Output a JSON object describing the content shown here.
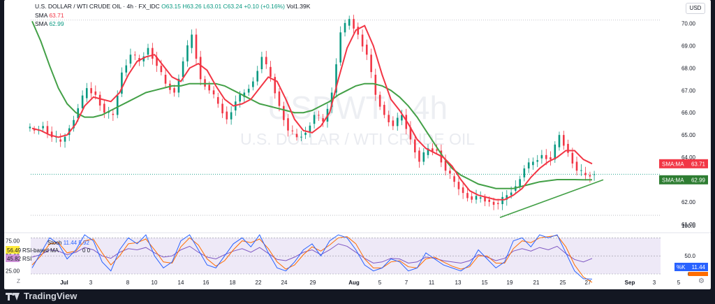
{
  "header": {
    "symbol": "U.S. DOLLAR / WTI CRUDE OIL",
    "timeframe": "4h",
    "exchange": "FX_IDC",
    "open": "O63.15",
    "high": "H63.26",
    "low": "L63.01",
    "close": "C63.24",
    "change": "+0.10 (+0.16%)",
    "volume": "Vol1.39K",
    "sma1_label": "SMA",
    "sma1_value": "63.71",
    "sma2_label": "SMA",
    "sma2_value": "62.99",
    "currency": "USD"
  },
  "watermark": {
    "ticker": "USDWTI, 4h",
    "name": "U.S. DOLLAR / WTI CRUDE OIL"
  },
  "price_tags": {
    "sma_fast_label": "SMA:MA",
    "sma_fast_value": "63.71",
    "sma_slow_label": "SMA:MA",
    "sma_slow_value": "62.99"
  },
  "oscillator": {
    "stoch_label": "Stoch",
    "stoch_values": "11.44  5.92",
    "rsi_based_label": "RSI-based MA",
    "rsi_based_value": "56.49",
    "rsi_label": "RSI",
    "rsi_value": "45.82",
    "extra": "0  0",
    "k_label": "%K",
    "k_value": "11.44",
    "d_value": "5.92"
  },
  "footer": {
    "brand": "TradingView"
  },
  "bottom_left": "Z",
  "colors": {
    "up": "#089981",
    "down": "#f23645",
    "sma_fast": "#f23645",
    "sma_slow": "#43a047",
    "stoch_k": "#2962ff",
    "stoch_d": "#ff6d00",
    "rsi": "#7e57c2",
    "band": "#7e57c2"
  },
  "chart_data": [
    {
      "type": "candlestick",
      "title": "U.S. DOLLAR / WTI CRUDE OIL, 4h",
      "x_tick_labels": [
        "Jul",
        "3",
        "8",
        "10",
        "14",
        "16",
        "18",
        "22",
        "24",
        "29",
        "Aug",
        "5",
        "7",
        "11",
        "13",
        "15",
        "19",
        "21",
        "25",
        "27",
        "Sep",
        "3",
        "5"
      ],
      "y_tick_labels": [
        "70.00",
        "69.00",
        "68.00",
        "67.00",
        "66.00",
        "65.00",
        "64.00",
        "62.00",
        "61.00"
      ],
      "ylim": [
        60.9,
        70.55
      ],
      "last_close": 63.24,
      "sma_fast_last": 63.71,
      "sma_slow_last": 62.99,
      "close_path": [
        65.2,
        65.4,
        64.9,
        64.7,
        65.3,
        66.2,
        67.1,
        66.8,
        66.0,
        65.9,
        67.8,
        68.6,
        68.3,
        68.9,
        68.1,
        67.3,
        66.9,
        68.3,
        69.5,
        67.5,
        67.0,
        66.4,
        65.7,
        66.5,
        66.9,
        67.4,
        68.5,
        67.6,
        66.3,
        65.2,
        64.9,
        65.1,
        65.9,
        65.6,
        66.9,
        69.6,
        70.2,
        69.5,
        68.6,
        66.8,
        65.9,
        65.4,
        65.9,
        64.8,
        63.8,
        64.4,
        64.3,
        63.4,
        62.9,
        62.4,
        62.1,
        62.2,
        62.0,
        61.9,
        62.3,
        62.7,
        63.5,
        63.8,
        64.1,
        63.9,
        65.0,
        64.2,
        63.4,
        63.2,
        63.24
      ],
      "sma_fast": [
        65.3,
        65.2,
        65.0,
        64.9,
        65.0,
        65.5,
        66.3,
        66.7,
        66.6,
        66.5,
        66.9,
        67.7,
        68.3,
        68.5,
        68.6,
        68.1,
        67.6,
        67.4,
        68.0,
        68.2,
        67.9,
        67.2,
        66.6,
        66.3,
        66.4,
        66.6,
        67.1,
        67.6,
        67.4,
        66.6,
        65.7,
        65.2,
        65.1,
        65.4,
        66.0,
        67.5,
        68.9,
        69.7,
        69.9,
        69.0,
        67.7,
        66.6,
        66.1,
        65.5,
        64.8,
        64.4,
        64.2,
        64.0,
        63.6,
        63.0,
        62.5,
        62.3,
        62.2,
        62.1,
        62.1,
        62.3,
        62.6,
        63.1,
        63.5,
        63.8,
        64.0,
        64.3,
        64.3,
        63.9,
        63.71
      ],
      "sma_slow": [
        70.1,
        69.2,
        68.1,
        67.1,
        66.4,
        66.0,
        65.8,
        65.8,
        65.9,
        66.1,
        66.3,
        66.5,
        66.7,
        66.9,
        67.0,
        67.1,
        67.2,
        67.2,
        67.3,
        67.3,
        67.3,
        67.3,
        67.2,
        67.0,
        66.8,
        66.6,
        66.4,
        66.3,
        66.2,
        66.1,
        66.0,
        66.0,
        66.1,
        66.3,
        66.5,
        66.8,
        67.0,
        67.2,
        67.3,
        67.3,
        67.2,
        67.0,
        66.7,
        66.3,
        65.8,
        65.2,
        64.6,
        64.0,
        63.5,
        63.2,
        63.0,
        62.8,
        62.7,
        62.6,
        62.6,
        62.6,
        62.7,
        62.8,
        62.9,
        62.95,
        63.0,
        63.0,
        63.0,
        62.99,
        62.99
      ],
      "trendline": [
        [
          61.3
        ],
        [
          62.99
        ]
      ],
      "series_names": [
        "SMA",
        "SMA"
      ]
    },
    {
      "type": "line",
      "title": "Stoch / RSI",
      "y_tick_labels": [
        "75.00",
        "50.00",
        "25.00"
      ],
      "right_tick_labels": [
        "100.0",
        "50.0",
        "0.0"
      ],
      "ylim": [
        20,
        85
      ],
      "stoch_k": [
        30,
        55,
        80,
        70,
        45,
        60,
        85,
        75,
        40,
        25,
        60,
        80,
        70,
        85,
        50,
        30,
        40,
        75,
        85,
        60,
        35,
        30,
        50,
        70,
        80,
        65,
        85,
        55,
        30,
        25,
        40,
        60,
        70,
        50,
        75,
        85,
        80,
        60,
        35,
        25,
        30,
        45,
        40,
        25,
        30,
        55,
        45,
        35,
        30,
        25,
        35,
        60,
        45,
        30,
        40,
        75,
        80,
        65,
        85,
        80,
        85,
        55,
        25,
        12,
        11.44
      ],
      "stoch_d": [
        35,
        50,
        70,
        72,
        55,
        58,
        75,
        78,
        55,
        35,
        50,
        70,
        72,
        78,
        60,
        40,
        38,
        65,
        80,
        68,
        45,
        33,
        42,
        60,
        75,
        72,
        78,
        62,
        40,
        28,
        35,
        52,
        65,
        58,
        68,
        80,
        82,
        70,
        45,
        30,
        30,
        40,
        42,
        32,
        30,
        45,
        48,
        40,
        33,
        28,
        32,
        50,
        50,
        38,
        38,
        62,
        75,
        72,
        80,
        82,
        84,
        65,
        35,
        15,
        5.92
      ],
      "rsi": [
        48,
        52,
        60,
        58,
        52,
        56,
        64,
        60,
        50,
        46,
        56,
        62,
        60,
        64,
        55,
        48,
        50,
        60,
        66,
        56,
        48,
        45,
        52,
        58,
        62,
        56,
        64,
        54,
        44,
        42,
        48,
        56,
        60,
        52,
        60,
        70,
        66,
        56,
        46,
        38,
        40,
        46,
        45,
        38,
        40,
        48,
        46,
        42,
        40,
        38,
        42,
        52,
        48,
        42,
        46,
        58,
        62,
        58,
        64,
        60,
        66,
        54,
        44,
        40,
        45.82
      ],
      "rsi_ma_last": 56.49
    }
  ]
}
